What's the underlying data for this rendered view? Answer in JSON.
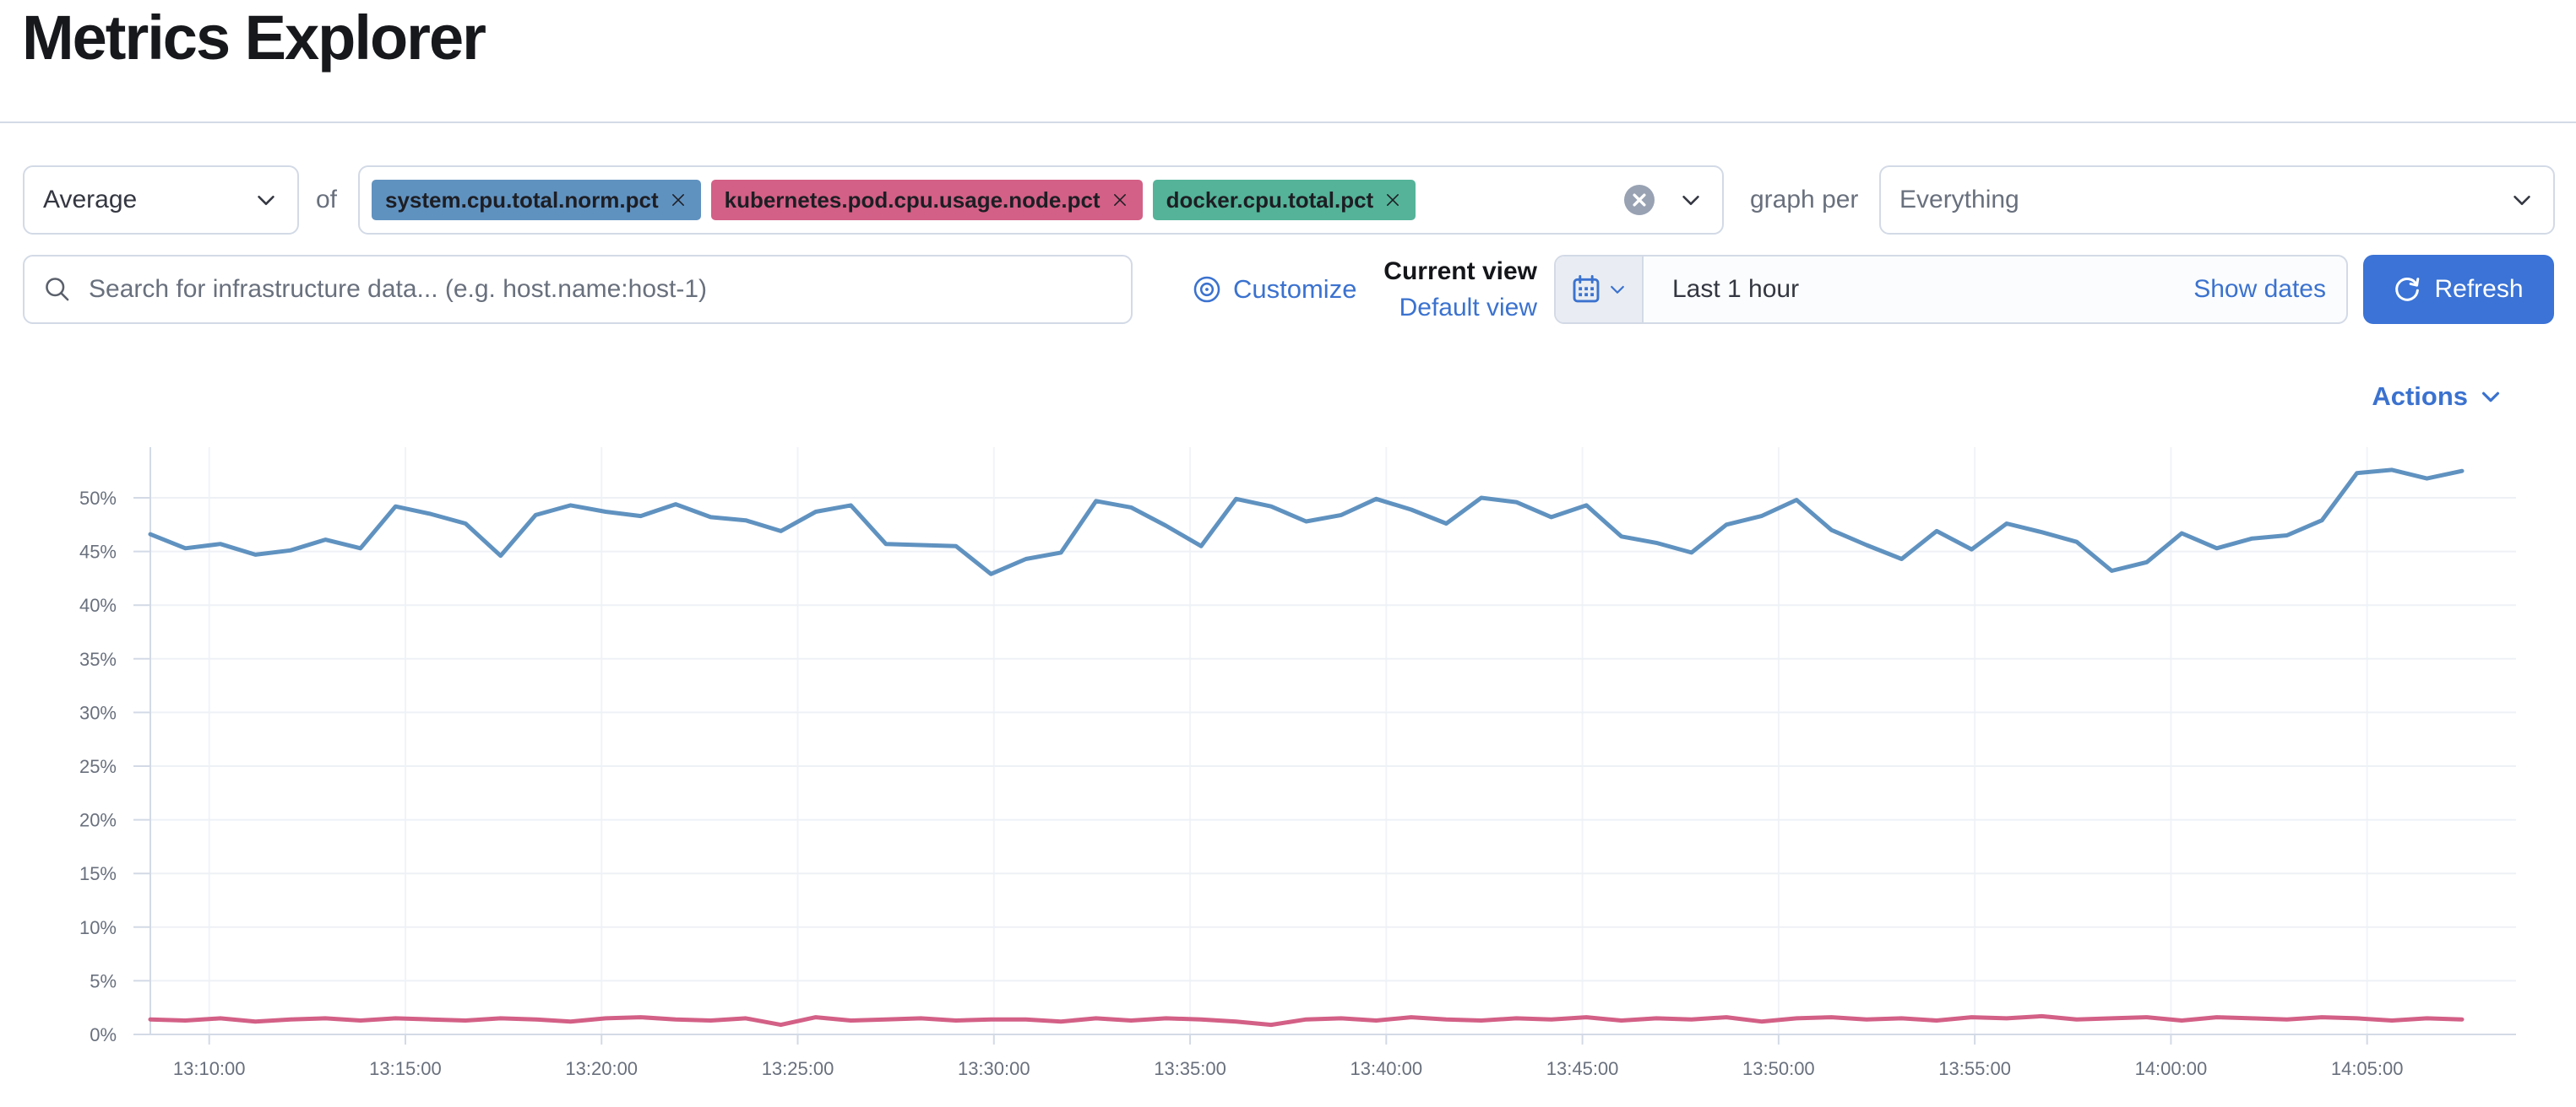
{
  "page": {
    "title": "Metrics Explorer"
  },
  "toolbar": {
    "aggregation_value": "Average",
    "of_label": "of",
    "metrics": [
      {
        "label": "system.cpu.total.norm.pct",
        "color": "#6092C0"
      },
      {
        "label": "kubernetes.pod.cpu.usage.node.pct",
        "color": "#D36086"
      },
      {
        "label": "docker.cpu.total.pct",
        "color": "#54B399"
      }
    ],
    "graph_per_label": "graph per",
    "group_by_value": "Everything"
  },
  "search": {
    "placeholder": "Search for infrastructure data... (e.g. host.name:host-1)"
  },
  "view_controls": {
    "customize_label": "Customize",
    "current_view_label": "Current view",
    "default_view_label": "Default view"
  },
  "time_controls": {
    "range_label": "Last 1 hour",
    "show_dates_label": "Show dates",
    "refresh_label": "Refresh"
  },
  "actions": {
    "label": "Actions"
  },
  "colors": {
    "primary_button_blue": "#3b73d6",
    "link_blue": "#3b72cf",
    "border_gray": "#d3dae6",
    "text_dark": "#343741",
    "text_muted": "#69707d",
    "series_blue": "#6092C0",
    "series_pink": "#D36086",
    "badge_green": "#54B399"
  },
  "chart_data": {
    "type": "line",
    "title": "",
    "xlabel": "",
    "ylabel": "",
    "legend": "none",
    "grid": true,
    "ylim_pct": [
      0,
      54.3
    ],
    "y_ticks": [
      "0%",
      "5%",
      "10%",
      "15%",
      "20%",
      "25%",
      "30%",
      "35%",
      "40%",
      "45%",
      "50%"
    ],
    "x_ticks": [
      "13:10:00",
      "13:15:00",
      "13:20:00",
      "13:25:00",
      "13:30:00",
      "13:35:00",
      "13:40:00",
      "13:45:00",
      "13:50:00",
      "13:55:00",
      "14:00:00",
      "14:05:00"
    ],
    "x_range_approx": [
      "13:08:30",
      "14:07:30"
    ],
    "series": [
      {
        "name": "avg of system.cpu.total.norm.pct",
        "color": "#6092C0",
        "unit": "%",
        "values": [
          46.6,
          45.3,
          45.7,
          44.7,
          45.1,
          46.1,
          45.3,
          49.2,
          48.5,
          47.6,
          44.6,
          48.4,
          49.3,
          48.7,
          48.3,
          49.4,
          48.2,
          47.9,
          46.9,
          48.7,
          49.3,
          45.7,
          45.6,
          45.5,
          42.9,
          44.3,
          44.9,
          49.7,
          49.1,
          47.4,
          45.5,
          49.9,
          49.2,
          47.8,
          48.4,
          49.9,
          48.9,
          47.6,
          50.0,
          49.6,
          48.2,
          49.3,
          46.4,
          45.8,
          44.9,
          47.5,
          48.3,
          49.8,
          47.0,
          45.6,
          44.3,
          46.9,
          45.2,
          47.6,
          46.8,
          45.9,
          43.2,
          44.0,
          46.7,
          45.3,
          46.2,
          46.5,
          47.9,
          52.3,
          52.6,
          51.8,
          52.5
        ]
      },
      {
        "name": "avg of kubernetes.pod.cpu.usage.node.pct",
        "color": "#D36086",
        "unit": "%",
        "values": [
          1.4,
          1.3,
          1.5,
          1.2,
          1.4,
          1.5,
          1.3,
          1.5,
          1.4,
          1.3,
          1.5,
          1.4,
          1.2,
          1.5,
          1.6,
          1.4,
          1.3,
          1.5,
          0.9,
          1.6,
          1.3,
          1.4,
          1.5,
          1.3,
          1.4,
          1.4,
          1.2,
          1.5,
          1.3,
          1.5,
          1.4,
          1.2,
          0.9,
          1.4,
          1.5,
          1.3,
          1.6,
          1.4,
          1.3,
          1.5,
          1.4,
          1.6,
          1.3,
          1.5,
          1.4,
          1.6,
          1.2,
          1.5,
          1.6,
          1.4,
          1.5,
          1.3,
          1.6,
          1.5,
          1.7,
          1.4,
          1.5,
          1.6,
          1.3,
          1.6,
          1.5,
          1.4,
          1.6,
          1.5,
          1.3,
          1.5,
          1.4
        ]
      }
    ]
  }
}
